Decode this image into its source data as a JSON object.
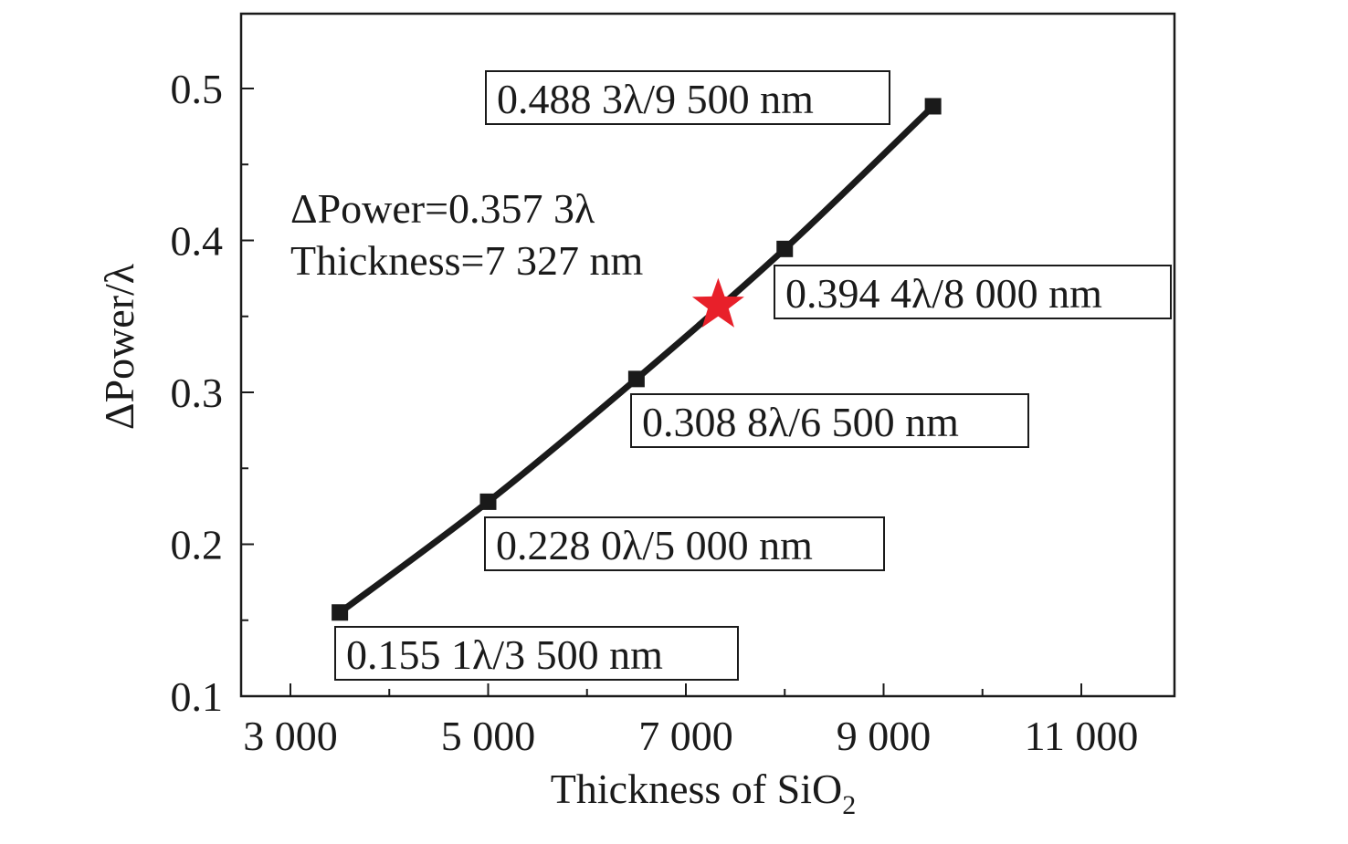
{
  "chart_data": {
    "type": "line",
    "xlabel": "Thickness of SiO",
    "xlabel_subscript": "2",
    "ylabel": "ΔPower/λ",
    "xlim": [
      2500,
      12000
    ],
    "ylim": [
      0.1,
      0.55
    ],
    "xticks": [
      3000,
      5000,
      7000,
      9000,
      11000
    ],
    "xtick_labels": [
      "3 000",
      "5 000",
      "7 000",
      "9 000",
      "11 000"
    ],
    "yticks": [
      0.1,
      0.2,
      0.3,
      0.4,
      0.5
    ],
    "ytick_labels": [
      "0.1",
      "0.2",
      "0.3",
      "0.4",
      "0.5"
    ],
    "grid": false,
    "series": [
      {
        "x": [
          3500,
          5000,
          6500,
          8000,
          9500
        ],
        "y": [
          0.1551,
          0.228,
          0.3088,
          0.3944,
          0.4883
        ],
        "marker": "square",
        "color": "#1a1a1a"
      }
    ],
    "point_labels": [
      "0.155 1λ/3 500 nm",
      "0.228 0λ/5 000 nm",
      "0.308 8λ/6 500 nm",
      "0.394 4λ/8 000 nm",
      "0.488 3λ/9 500 nm"
    ],
    "highlight": {
      "x": 7327,
      "y": 0.3573,
      "marker": "star",
      "color": "#e8202a"
    },
    "annotation": {
      "line1": "ΔPower=0.357 3λ",
      "line2": "Thickness=7 327 nm"
    }
  }
}
